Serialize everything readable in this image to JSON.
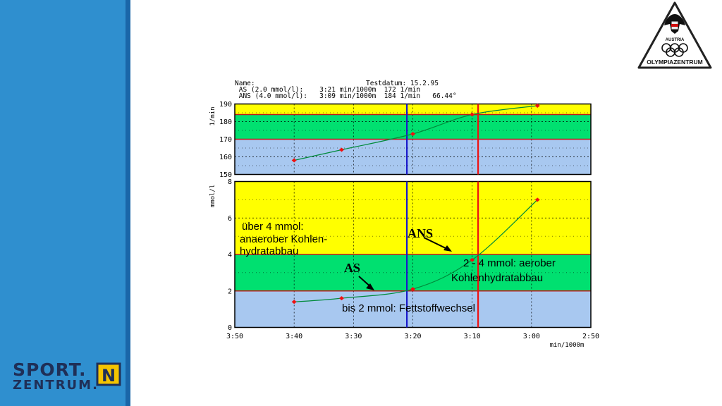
{
  "branding": {
    "sport_line1": "SPORT.",
    "sport_line2": "ZENTRUM.",
    "sport_badge": "N",
    "olympia_country": "AUSTRIA",
    "olympia_label": "OLYMPIAZENTRUM"
  },
  "header": {
    "line1_left": "Name:",
    "line1_right": "Testdatum: 15.2.95",
    "line2": " AS (2.0 mmol/l):    3:21 min/1000m  172 1/min",
    "line3": " ANS (4.0 mmol/l):   3:09 min/1000m  184 1/min   66.44°"
  },
  "colors": {
    "yellow": "#ffff00",
    "green": "#00e070",
    "blue": "#a8c8f0",
    "curve_green": "#008a3a",
    "point_red": "#ee1111",
    "as_line": "#1a1acc",
    "ans_line": "#ee1111"
  },
  "chart_data": [
    {
      "type": "line",
      "title": "",
      "ylabel": "1/min",
      "xlabel": "",
      "ylim": [
        150,
        190
      ],
      "yticks": [
        "150",
        "160",
        "170",
        "180",
        "190"
      ],
      "xlim": [
        "3:50",
        "2:50"
      ],
      "x_reversed": true,
      "grid": true,
      "zones": [
        {
          "from": 150,
          "to": 170,
          "color": "blue"
        },
        {
          "from": 170,
          "to": 184,
          "color": "green"
        },
        {
          "from": 184,
          "to": 190,
          "color": "yellow"
        }
      ],
      "series": [
        {
          "x": [
            "3:40",
            "3:32",
            "3:20",
            "3:10",
            "2:59"
          ],
          "values": [
            158,
            164,
            173,
            184,
            189
          ]
        }
      ]
    },
    {
      "type": "line",
      "title": "",
      "ylabel": "mmol/l",
      "xlabel": "min/1000m",
      "ylim": [
        0,
        8
      ],
      "yticks": [
        "0",
        "2",
        "4",
        "6",
        "8"
      ],
      "xticks": [
        "3:50",
        "3:40",
        "3:30",
        "3:20",
        "3:10",
        "3:00",
        "2:50"
      ],
      "x_reversed": true,
      "grid": true,
      "zones": [
        {
          "from": 0,
          "to": 2,
          "color": "blue"
        },
        {
          "from": 2,
          "to": 4,
          "color": "green"
        },
        {
          "from": 4,
          "to": 8,
          "color": "yellow"
        }
      ],
      "series": [
        {
          "x": [
            "3:40",
            "3:32",
            "3:20",
            "3:10",
            "2:59"
          ],
          "values": [
            1.4,
            1.6,
            2.1,
            3.7,
            7.0
          ]
        }
      ],
      "thresholds": [
        {
          "label": "AS",
          "x": "3:21",
          "value": 2.0
        },
        {
          "label": "ANS",
          "x": "3:09",
          "value": 4.0
        }
      ],
      "annotations": {
        "zone_high_1": "über 4 mmol:",
        "zone_high_2": "anaerober Kohlen-",
        "zone_high_3": "hydratabbau",
        "zone_mid_1": "2 - 4 mmol: aerober",
        "zone_mid_2": "Kohlenhydratabbau",
        "zone_low": "bis 2 mmol: Fettstoffwechsel",
        "as_label": "AS",
        "ans_label": "ANS"
      }
    }
  ]
}
